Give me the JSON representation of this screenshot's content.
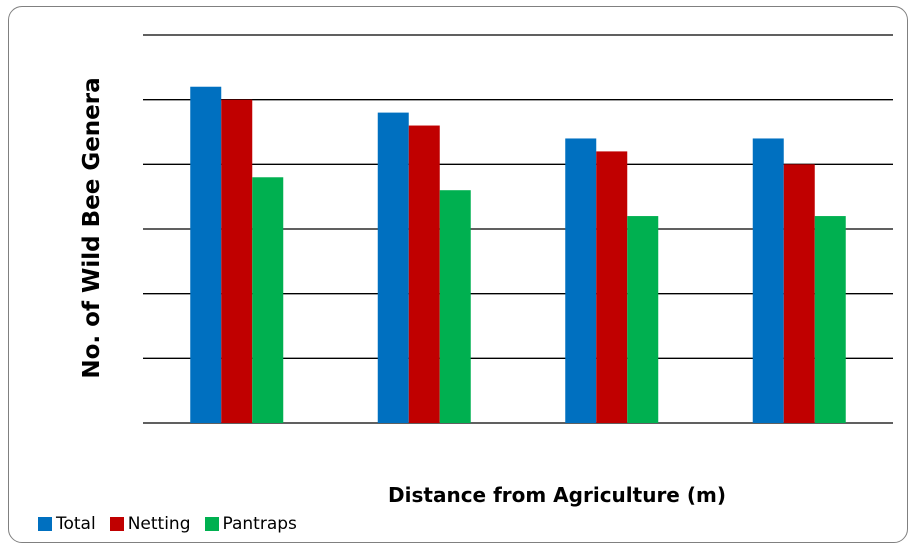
{
  "chart_data": {
    "type": "bar",
    "title": "",
    "xlabel": "Distance from Agriculture (m)",
    "ylabel": "No. of Wild Bee Genera",
    "categories": [
      "",
      "",
      "",
      ""
    ],
    "ylim": [
      0,
      6
    ],
    "grid": true,
    "legend_position": "bottom-left",
    "series": [
      {
        "name": "Total",
        "color": "#0070C0",
        "values": [
          5.2,
          4.8,
          4.4,
          4.4
        ]
      },
      {
        "name": "Netting",
        "color": "#C00000",
        "values": [
          5.0,
          4.6,
          4.2,
          4.0
        ]
      },
      {
        "name": "Pantraps",
        "color": "#00B050",
        "values": [
          3.8,
          3.6,
          3.2,
          3.2
        ]
      }
    ]
  }
}
